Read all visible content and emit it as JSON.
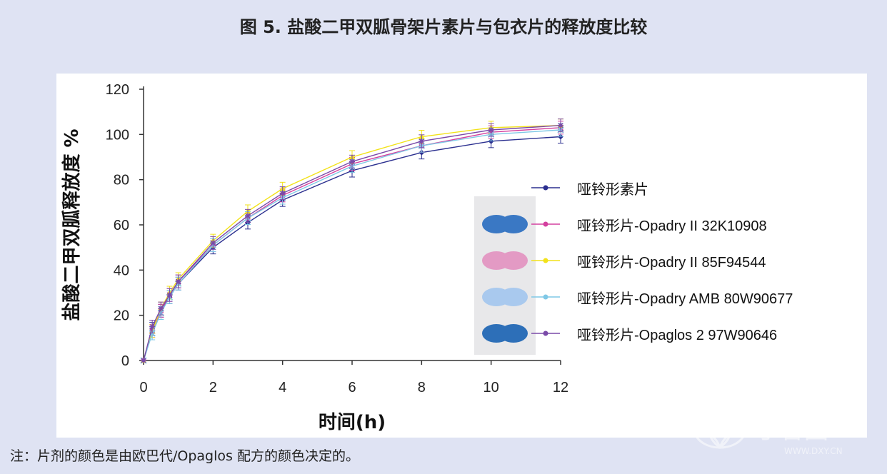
{
  "page": {
    "title": "图 5. 盐酸二甲双胍骨架片素片与包衣片的释放度比较",
    "note": "注：片剂的颜色是由欧巴代/Opaglos 配方的颜色决定的。",
    "watermark_text": "丁香园",
    "watermark_url": "WWW.DXY.CN"
  },
  "chart_data": {
    "type": "line",
    "title": "",
    "xlabel": "时间(h)",
    "ylabel": "盐酸二甲双胍释放度 %",
    "xlim": [
      0,
      12
    ],
    "ylim": [
      0,
      120
    ],
    "xticks": [
      0,
      2,
      4,
      6,
      8,
      10,
      12
    ],
    "yticks": [
      0,
      20,
      40,
      60,
      80,
      100,
      120
    ],
    "grid": false,
    "legend_position": "right",
    "x": [
      0,
      0.25,
      0.5,
      0.75,
      1,
      2,
      3,
      4,
      6,
      8,
      10,
      12
    ],
    "series": [
      {
        "name": "哑铃形素片",
        "color": "#2b2f8f",
        "marker": "diamond",
        "tablet_color": "",
        "values": [
          0,
          14,
          22,
          28,
          34,
          50,
          61,
          71,
          84,
          92,
          97,
          99
        ]
      },
      {
        "name": "哑铃形片-Opadry II 32K10908",
        "color": "#d4409f",
        "marker": "square",
        "tablet_color": "#3a78c4",
        "values": [
          0,
          13,
          22,
          29,
          35,
          51,
          63,
          73,
          87,
          95,
          101,
          103
        ]
      },
      {
        "name": "哑铃形片-Opadry II 85F94544",
        "color": "#f2e21a",
        "marker": "triangle",
        "tablet_color": "#e39ac4",
        "values": [
          0,
          13,
          23,
          30,
          36,
          53,
          66,
          76,
          90,
          99,
          103,
          104
        ]
      },
      {
        "name": "哑铃形片-Opadry AMB 80W90677",
        "color": "#7fc8e6",
        "marker": "x",
        "tablet_color": "#a9c9ee",
        "values": [
          0,
          12,
          21,
          28,
          34,
          51,
          63,
          72,
          86,
          95,
          100,
          102
        ]
      },
      {
        "name": "哑铃形片-Opaglos 2 97W90646",
        "color": "#7a4aa8",
        "marker": "star",
        "tablet_color": "#2d6fb8",
        "values": [
          0,
          15,
          23,
          29,
          35,
          52,
          64,
          74,
          88,
          97,
          102,
          104
        ]
      }
    ]
  }
}
